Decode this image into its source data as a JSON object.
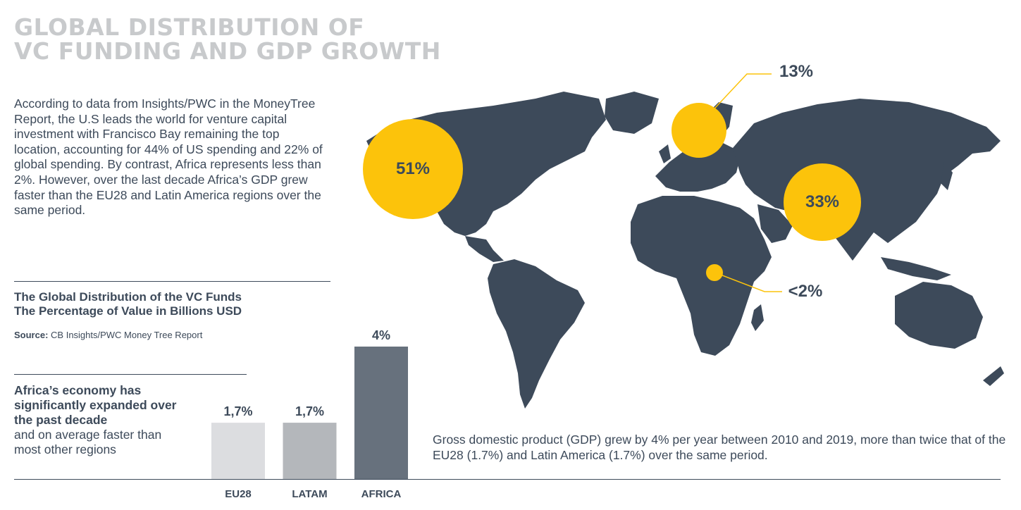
{
  "header": {
    "title_line1": "GLOBAL DISTRIBUTION OF",
    "title_line2": "VC FUNDING AND GDP GROWTH"
  },
  "intro_text": "According to data from Insights/PWC in the MoneyTree Report, the U.S leads the world for venture capital investment with Francisco Bay remaining the top location, accounting for 44% of US spending and 22% of global spending. By contrast, Africa represents less than 2%. However, over the last decade Africa’s GDP grew faster than the EU28 and Latin America regions over the same period.",
  "chart_title_line1": "The Global Distribution of the VC Funds",
  "chart_title_line2": "The Percentage of Value in Billions USD",
  "source": {
    "label": "Source:",
    "text": "CB Insights/PWC Money Tree Report"
  },
  "callout": {
    "strong": "Africa’s economy has significantly expanded over the past decade",
    "rest": "and on average faster than most other regions"
  },
  "gdp_note": "Gross domestic product (GDP) grew by 4% per year between 2010 and 2019, more than twice that of the EU28 (1.7%) and Latin America (1.7%) over the same period.",
  "map": {
    "labels": {
      "north_america": "51%",
      "europe": "13%",
      "asia": "33%",
      "africa": "<2%"
    },
    "colors": {
      "land": "#3d4a5a",
      "bubble": "#fcc30b"
    }
  },
  "chart_data": {
    "type": "bar",
    "categories": [
      "EU28",
      "LATAM",
      "AFRICA"
    ],
    "values": [
      1.7,
      1.7,
      4
    ],
    "value_labels": [
      "1,7%",
      "1,7%",
      "4%"
    ],
    "colors": [
      "#dcdde0",
      "#b4b7bb",
      "#67717d"
    ],
    "ylim": [
      0,
      4
    ],
    "xlabel": "",
    "ylabel": ""
  }
}
